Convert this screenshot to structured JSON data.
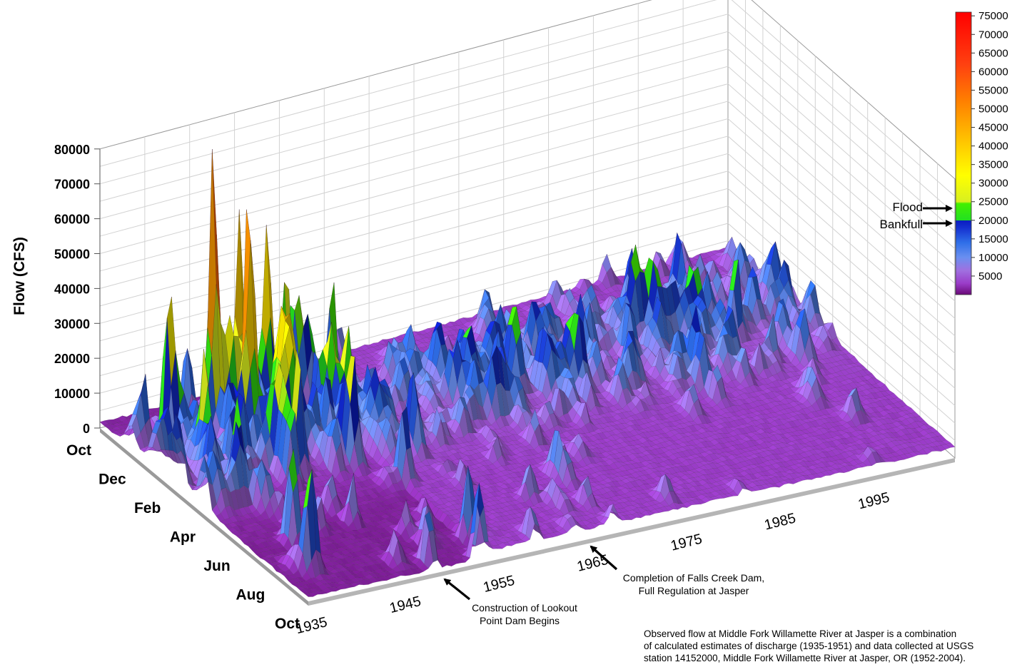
{
  "chart_data": {
    "type": "surface3d",
    "ylabel": "Flow (CFS)",
    "z_ticks": [
      "0",
      "10000",
      "20000",
      "30000",
      "40000",
      "50000",
      "60000",
      "70000",
      "80000"
    ],
    "z_range": [
      0,
      80000
    ],
    "month_ticks": [
      "Oct",
      "Dec",
      "Feb",
      "Apr",
      "Jun",
      "Aug",
      "Oct"
    ],
    "year_ticks": [
      "1935",
      "1945",
      "1955",
      "1965",
      "1975",
      "1985",
      "1995"
    ],
    "year_range": [
      1935,
      2004
    ],
    "colorbar": {
      "labels": [
        "75000",
        "70000",
        "65000",
        "60000",
        "55000",
        "50000",
        "45000",
        "40000",
        "35000",
        "30000",
        "25000",
        "20000",
        "15000",
        "10000",
        "5000"
      ],
      "range": [
        0,
        76000
      ],
      "stops": [
        {
          "value": 0,
          "color": "#6a0a78"
        },
        {
          "value": 3000,
          "color": "#9a3cc8"
        },
        {
          "value": 6500,
          "color": "#a070e0"
        },
        {
          "value": 10000,
          "color": "#6a8ff0"
        },
        {
          "value": 14000,
          "color": "#2f6fe8"
        },
        {
          "value": 18000,
          "color": "#1530d0"
        },
        {
          "value": 20000,
          "color": "#0a1cc0"
        },
        {
          "value": 20001,
          "color": "#22e022"
        },
        {
          "value": 24500,
          "color": "#44f000"
        },
        {
          "value": 25000,
          "color": "#d8f020"
        },
        {
          "value": 32000,
          "color": "#ffff00"
        },
        {
          "value": 42000,
          "color": "#ffc000"
        },
        {
          "value": 52000,
          "color": "#ff8000"
        },
        {
          "value": 62000,
          "color": "#ff4010"
        },
        {
          "value": 76000,
          "color": "#ff0000"
        }
      ]
    },
    "thresholds": [
      {
        "label": "Flood",
        "value": 25000
      },
      {
        "label": "Bankfull",
        "value": 20000
      }
    ],
    "annotations": [
      {
        "text": "Construction of Lookout Point Dam Begins",
        "year": 1949
      },
      {
        "text": "Completion of Falls Creek Dam, Full Regulation at Jasper",
        "year": 1966
      }
    ],
    "notable_peaks": [
      {
        "year": 1943,
        "month": "Dec",
        "flow": 73000
      },
      {
        "year": 1945,
        "month": "Jan",
        "flow": 63000
      },
      {
        "year": 1946,
        "month": "Dec",
        "flow": 58000
      },
      {
        "year": 1949,
        "month": "Dec",
        "flow": 47000
      },
      {
        "year": 1951,
        "month": "Dec",
        "flow": 41000
      },
      {
        "year": 1956,
        "month": "Dec",
        "flow": 38000
      },
      {
        "year": 1996,
        "month": "Feb",
        "flow": 22000
      }
    ]
  },
  "lines": {
    "construction": [
      "Construction of Lookout",
      "Point Dam Begins"
    ],
    "falls_creek": [
      "Completion of Falls Creek Dam,",
      "Full Regulation at Jasper"
    ],
    "note": [
      "Observed flow at Middle Fork Willamette River at Jasper is a combination",
      "of calculated estimates of discharge (1935-1951) and data collected at USGS",
      "station 14152000, Middle Fork Willamette River at Jasper, OR (1952-2004)."
    ]
  }
}
